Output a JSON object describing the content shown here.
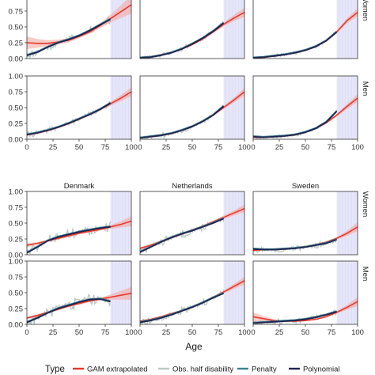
{
  "chart_data": {
    "type": "line",
    "xlabel": "Age",
    "x_ticks": [
      0,
      25,
      50,
      75,
      100
    ],
    "y_ticks": [
      0.0,
      0.25,
      0.5,
      0.75,
      1.0
    ],
    "y_tick_labels": [
      "0.00",
      "0.25",
      "0.50",
      "0.75",
      "1.00"
    ],
    "xlim": [
      0,
      100
    ],
    "ylim": [
      0,
      1
    ],
    "extrapolation_band": [
      80,
      100
    ],
    "row_strips": [
      "Women",
      "Men"
    ],
    "column_strips_bottom": [
      "Denmark",
      "Netherlands",
      "Sweden"
    ],
    "legend": {
      "title": "Type",
      "items": [
        {
          "label": "GAM extrapolated",
          "color": "#e8382c",
          "key": "gam"
        },
        {
          "label": "Obs. half disability",
          "color": "#b8c9c4",
          "key": "obs"
        },
        {
          "label": "Penalty",
          "color": "#3f7f8c",
          "key": "penalty"
        },
        {
          "label": "Polynomial",
          "color": "#1f2350",
          "key": "poly"
        }
      ]
    },
    "colors": {
      "gam": "#e8382c",
      "gam_ribbon": "#f4a8a1",
      "obs": "#b8c9c4",
      "penalty": "#3f7f8c",
      "poly": "#1f2350",
      "band": "#e6e6fa"
    },
    "panels": [
      {
        "block": 0,
        "row": 0,
        "col": 0,
        "strip": "",
        "gam": {
          "x": [
            0,
            10,
            20,
            30,
            40,
            50,
            60,
            70,
            80,
            90,
            100
          ],
          "y": [
            0.25,
            0.24,
            0.24,
            0.26,
            0.29,
            0.35,
            0.42,
            0.52,
            0.63,
            0.74,
            0.85
          ]
        },
        "gam_lo": [
          0.15,
          0.17,
          0.19,
          0.22,
          0.26,
          0.32,
          0.39,
          0.48,
          0.57,
          0.64,
          0.71
        ],
        "gam_hi": [
          0.35,
          0.31,
          0.29,
          0.3,
          0.32,
          0.38,
          0.45,
          0.56,
          0.69,
          0.84,
          0.99
        ],
        "smooth": {
          "x": [
            0,
            10,
            20,
            30,
            40,
            50,
            60,
            70,
            80
          ],
          "y": [
            0.05,
            0.1,
            0.18,
            0.25,
            0.3,
            0.36,
            0.44,
            0.53,
            0.62
          ]
        },
        "noise": 0.04,
        "seed": 11
      },
      {
        "block": 0,
        "row": 0,
        "col": 1,
        "strip": "",
        "gam": {
          "x": [
            0,
            10,
            20,
            30,
            40,
            50,
            60,
            70,
            80,
            90,
            100
          ],
          "y": [
            0.02,
            0.03,
            0.06,
            0.1,
            0.15,
            0.22,
            0.31,
            0.42,
            0.54,
            0.64,
            0.73
          ]
        },
        "gam_lo": [
          0.01,
          0.02,
          0.05,
          0.09,
          0.14,
          0.21,
          0.3,
          0.4,
          0.51,
          0.59,
          0.66
        ],
        "gam_hi": [
          0.03,
          0.04,
          0.07,
          0.11,
          0.16,
          0.23,
          0.32,
          0.44,
          0.57,
          0.69,
          0.8
        ],
        "smooth": {
          "x": [
            0,
            10,
            20,
            30,
            40,
            50,
            60,
            70,
            80
          ],
          "y": [
            0.01,
            0.02,
            0.05,
            0.09,
            0.15,
            0.23,
            0.32,
            0.43,
            0.56
          ]
        },
        "noise": 0.025,
        "seed": 23
      },
      {
        "block": 0,
        "row": 0,
        "col": 2,
        "strip": "",
        "gam": {
          "x": [
            0,
            10,
            20,
            30,
            40,
            50,
            60,
            70,
            80,
            90,
            100
          ],
          "y": [
            0.01,
            0.02,
            0.04,
            0.06,
            0.09,
            0.13,
            0.19,
            0.28,
            0.42,
            0.6,
            0.73
          ]
        },
        "gam_lo": [
          0.0,
          0.01,
          0.03,
          0.05,
          0.08,
          0.12,
          0.18,
          0.27,
          0.4,
          0.56,
          0.67
        ],
        "gam_hi": [
          0.02,
          0.03,
          0.05,
          0.07,
          0.1,
          0.14,
          0.2,
          0.29,
          0.44,
          0.64,
          0.79
        ],
        "smooth": {
          "x": [
            0,
            10,
            20,
            30,
            40,
            50,
            60,
            70,
            80
          ],
          "y": [
            0.01,
            0.02,
            0.04,
            0.06,
            0.09,
            0.13,
            0.19,
            0.28,
            0.42
          ]
        },
        "noise": 0.02,
        "seed": 37
      },
      {
        "block": 0,
        "row": 1,
        "col": 0,
        "strip": "",
        "gam": {
          "x": [
            0,
            10,
            20,
            30,
            40,
            50,
            60,
            70,
            80,
            90,
            100
          ],
          "y": [
            0.07,
            0.1,
            0.14,
            0.19,
            0.25,
            0.32,
            0.39,
            0.47,
            0.56,
            0.65,
            0.75
          ]
        },
        "gam_lo": [
          0.05,
          0.08,
          0.12,
          0.17,
          0.23,
          0.3,
          0.37,
          0.45,
          0.53,
          0.6,
          0.68
        ],
        "gam_hi": [
          0.09,
          0.12,
          0.16,
          0.21,
          0.27,
          0.34,
          0.41,
          0.49,
          0.59,
          0.7,
          0.82
        ],
        "smooth": {
          "x": [
            0,
            10,
            20,
            30,
            40,
            50,
            60,
            70,
            80
          ],
          "y": [
            0.07,
            0.1,
            0.14,
            0.19,
            0.25,
            0.32,
            0.39,
            0.47,
            0.57
          ]
        },
        "noise": 0.035,
        "seed": 41
      },
      {
        "block": 0,
        "row": 1,
        "col": 1,
        "strip": "",
        "gam": {
          "x": [
            0,
            10,
            20,
            30,
            40,
            50,
            60,
            70,
            80,
            90,
            100
          ],
          "y": [
            0.03,
            0.04,
            0.06,
            0.09,
            0.14,
            0.2,
            0.28,
            0.38,
            0.5,
            0.62,
            0.75
          ]
        },
        "gam_lo": [
          0.02,
          0.03,
          0.05,
          0.08,
          0.13,
          0.19,
          0.27,
          0.37,
          0.48,
          0.58,
          0.69
        ],
        "gam_hi": [
          0.04,
          0.05,
          0.07,
          0.1,
          0.15,
          0.21,
          0.29,
          0.39,
          0.53,
          0.66,
          0.81
        ],
        "smooth": {
          "x": [
            0,
            10,
            20,
            30,
            40,
            50,
            60,
            70,
            80
          ],
          "y": [
            0.02,
            0.04,
            0.06,
            0.09,
            0.14,
            0.2,
            0.28,
            0.38,
            0.52
          ]
        },
        "noise": 0.03,
        "seed": 53
      },
      {
        "block": 0,
        "row": 1,
        "col": 2,
        "strip": "",
        "gam": {
          "x": [
            0,
            10,
            20,
            30,
            40,
            50,
            60,
            70,
            80,
            90,
            100
          ],
          "y": [
            0.03,
            0.03,
            0.04,
            0.05,
            0.07,
            0.11,
            0.17,
            0.26,
            0.38,
            0.52,
            0.65
          ]
        },
        "gam_lo": [
          0.02,
          0.02,
          0.03,
          0.04,
          0.06,
          0.1,
          0.16,
          0.25,
          0.36,
          0.48,
          0.59
        ],
        "gam_hi": [
          0.04,
          0.04,
          0.05,
          0.06,
          0.08,
          0.12,
          0.18,
          0.27,
          0.4,
          0.56,
          0.71
        ],
        "smooth": {
          "x": [
            0,
            10,
            20,
            30,
            40,
            50,
            60,
            70,
            80
          ],
          "y": [
            0.04,
            0.03,
            0.04,
            0.05,
            0.07,
            0.11,
            0.17,
            0.27,
            0.44
          ]
        },
        "noise": 0.02,
        "seed": 67
      },
      {
        "block": 1,
        "row": 0,
        "col": 0,
        "strip": "Denmark",
        "gam": {
          "x": [
            0,
            10,
            20,
            30,
            40,
            50,
            60,
            70,
            80,
            90,
            100
          ],
          "y": [
            0.15,
            0.18,
            0.22,
            0.26,
            0.3,
            0.34,
            0.37,
            0.4,
            0.44,
            0.48,
            0.53
          ]
        },
        "gam_lo": [
          0.12,
          0.16,
          0.2,
          0.24,
          0.28,
          0.32,
          0.35,
          0.38,
          0.41,
          0.43,
          0.45
        ],
        "gam_hi": [
          0.18,
          0.2,
          0.24,
          0.28,
          0.32,
          0.36,
          0.39,
          0.42,
          0.47,
          0.53,
          0.61
        ],
        "smooth": {
          "x": [
            0,
            10,
            20,
            30,
            40,
            50,
            60,
            70,
            80
          ],
          "y": [
            0.03,
            0.12,
            0.22,
            0.28,
            0.32,
            0.36,
            0.39,
            0.42,
            0.44
          ]
        },
        "noise": 0.06,
        "seed": 71
      },
      {
        "block": 1,
        "row": 0,
        "col": 1,
        "strip": "Netherlands",
        "gam": {
          "x": [
            0,
            10,
            20,
            30,
            40,
            50,
            60,
            70,
            80,
            90,
            100
          ],
          "y": [
            0.1,
            0.15,
            0.21,
            0.27,
            0.33,
            0.39,
            0.45,
            0.52,
            0.59,
            0.66,
            0.73
          ]
        },
        "gam_lo": [
          0.08,
          0.13,
          0.19,
          0.25,
          0.31,
          0.37,
          0.43,
          0.5,
          0.56,
          0.62,
          0.67
        ],
        "gam_hi": [
          0.12,
          0.17,
          0.23,
          0.29,
          0.35,
          0.41,
          0.47,
          0.54,
          0.62,
          0.7,
          0.79
        ],
        "smooth": {
          "x": [
            0,
            10,
            20,
            30,
            40,
            50,
            60,
            70,
            80
          ],
          "y": [
            0.04,
            0.12,
            0.2,
            0.27,
            0.33,
            0.38,
            0.44,
            0.5,
            0.57
          ]
        },
        "noise": 0.045,
        "seed": 83
      },
      {
        "block": 1,
        "row": 0,
        "col": 2,
        "strip": "Sweden",
        "gam": {
          "x": [
            0,
            10,
            20,
            30,
            40,
            50,
            60,
            70,
            80,
            90,
            100
          ],
          "y": [
            0.07,
            0.08,
            0.09,
            0.1,
            0.11,
            0.13,
            0.16,
            0.2,
            0.26,
            0.34,
            0.44
          ]
        },
        "gam_lo": [
          0.05,
          0.07,
          0.08,
          0.09,
          0.1,
          0.12,
          0.15,
          0.19,
          0.24,
          0.3,
          0.37
        ],
        "gam_hi": [
          0.09,
          0.09,
          0.1,
          0.11,
          0.12,
          0.14,
          0.17,
          0.21,
          0.28,
          0.38,
          0.51
        ],
        "smooth": {
          "x": [
            0,
            10,
            20,
            30,
            40,
            50,
            60,
            70,
            80
          ],
          "y": [
            0.09,
            0.08,
            0.08,
            0.09,
            0.1,
            0.12,
            0.15,
            0.18,
            0.24
          ]
        },
        "noise": 0.035,
        "seed": 97
      },
      {
        "block": 1,
        "row": 1,
        "col": 0,
        "strip": "",
        "gam": {
          "x": [
            0,
            10,
            20,
            30,
            40,
            50,
            60,
            70,
            80,
            90,
            100
          ],
          "y": [
            0.1,
            0.14,
            0.19,
            0.24,
            0.29,
            0.33,
            0.37,
            0.4,
            0.43,
            0.46,
            0.49
          ]
        },
        "gam_lo": [
          0.08,
          0.12,
          0.17,
          0.22,
          0.27,
          0.31,
          0.35,
          0.38,
          0.39,
          0.39,
          0.39
        ],
        "gam_hi": [
          0.12,
          0.16,
          0.21,
          0.26,
          0.31,
          0.35,
          0.39,
          0.42,
          0.47,
          0.53,
          0.59
        ],
        "smooth": {
          "x": [
            0,
            10,
            20,
            30,
            40,
            50,
            60,
            70,
            80
          ],
          "y": [
            0.03,
            0.1,
            0.18,
            0.25,
            0.3,
            0.35,
            0.39,
            0.4,
            0.36
          ]
        },
        "noise": 0.07,
        "seed": 103
      },
      {
        "block": 1,
        "row": 1,
        "col": 1,
        "strip": "",
        "gam": {
          "x": [
            0,
            10,
            20,
            30,
            40,
            50,
            60,
            70,
            80,
            90,
            100
          ],
          "y": [
            0.05,
            0.08,
            0.12,
            0.17,
            0.22,
            0.28,
            0.35,
            0.43,
            0.51,
            0.6,
            0.69
          ]
        },
        "gam_lo": [
          0.04,
          0.07,
          0.11,
          0.16,
          0.21,
          0.27,
          0.34,
          0.42,
          0.49,
          0.56,
          0.63
        ],
        "gam_hi": [
          0.06,
          0.09,
          0.13,
          0.18,
          0.23,
          0.29,
          0.36,
          0.44,
          0.53,
          0.64,
          0.75
        ],
        "smooth": {
          "x": [
            0,
            10,
            20,
            30,
            40,
            50,
            60,
            70,
            80
          ],
          "y": [
            0.03,
            0.06,
            0.1,
            0.15,
            0.21,
            0.27,
            0.34,
            0.42,
            0.49
          ]
        },
        "noise": 0.04,
        "seed": 113
      },
      {
        "block": 1,
        "row": 1,
        "col": 2,
        "strip": "",
        "gam": {
          "x": [
            0,
            10,
            20,
            30,
            40,
            50,
            60,
            70,
            80,
            90,
            100
          ],
          "y": [
            0.12,
            0.09,
            0.06,
            0.05,
            0.05,
            0.06,
            0.08,
            0.12,
            0.19,
            0.27,
            0.36
          ]
        },
        "gam_lo": [
          0.05,
          0.05,
          0.04,
          0.04,
          0.04,
          0.05,
          0.07,
          0.11,
          0.17,
          0.23,
          0.29
        ],
        "gam_hi": [
          0.19,
          0.13,
          0.08,
          0.06,
          0.06,
          0.07,
          0.09,
          0.13,
          0.21,
          0.31,
          0.43
        ],
        "smooth": {
          "x": [
            0,
            10,
            20,
            30,
            40,
            50,
            60,
            70,
            80
          ],
          "y": [
            0.02,
            0.03,
            0.04,
            0.05,
            0.06,
            0.08,
            0.11,
            0.15,
            0.2
          ]
        },
        "noise": 0.03,
        "seed": 127
      }
    ]
  }
}
